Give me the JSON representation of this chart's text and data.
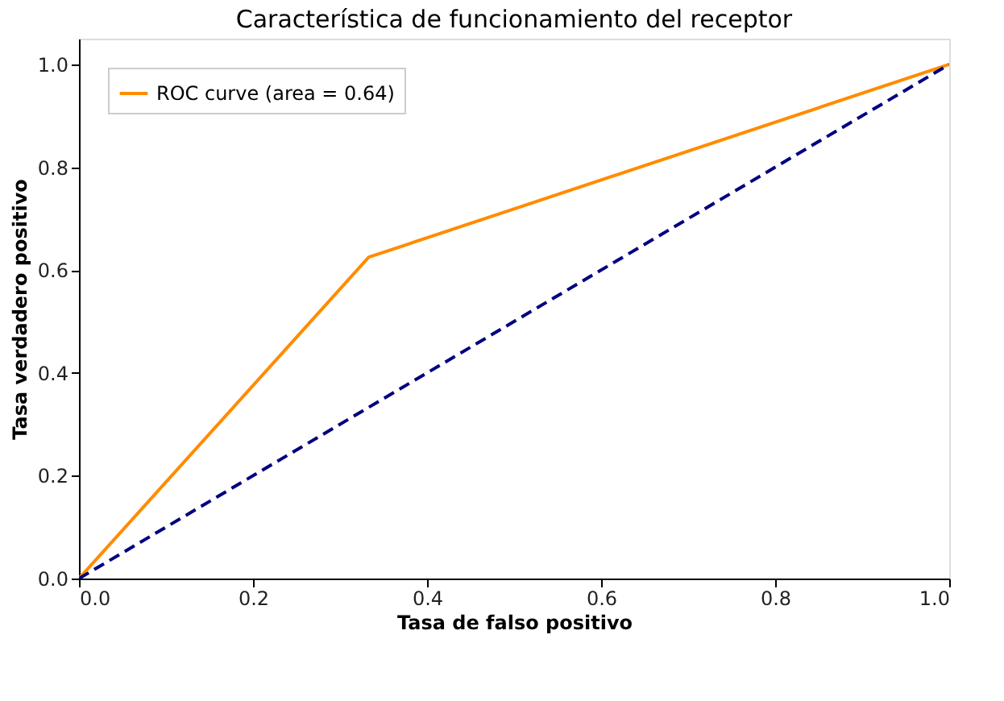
{
  "chart_data": {
    "type": "line",
    "title": "Característica de funcionamiento del receptor",
    "xlabel": "Tasa de falso positivo",
    "ylabel": "Tasa verdadero positivo",
    "series": [
      {
        "name": "ROC curve (area = 0.64)",
        "color": "#ff8c00",
        "x": [
          0,
          0.333,
          1
        ],
        "values": [
          0,
          0.625,
          1
        ],
        "line_style": "solid"
      },
      {
        "color": "#000080",
        "x": [
          0,
          1
        ],
        "values": [
          0,
          1
        ],
        "line_style": "dashed"
      }
    ],
    "xlim": [
      0,
      1
    ],
    "ylim": [
      0,
      1.05
    ],
    "xticks": [
      {
        "value": 0,
        "label": "0.0"
      },
      {
        "value": 0.2,
        "label": "0.2"
      },
      {
        "value": 0.4,
        "label": "0.4"
      },
      {
        "value": 0.6,
        "label": "0.6"
      },
      {
        "value": 0.8,
        "label": "0.8"
      },
      {
        "value": 1,
        "label": "1.0"
      }
    ],
    "yticks": [
      {
        "value": 0,
        "label": "0.0"
      },
      {
        "value": 0.2,
        "label": "0.2"
      },
      {
        "value": 0.4,
        "label": "0.4"
      },
      {
        "value": 0.6,
        "label": "0.6"
      },
      {
        "value": 0.8,
        "label": "0.8"
      },
      {
        "value": 1,
        "label": "1.0"
      }
    ],
    "grid": false,
    "legend": "top left"
  }
}
